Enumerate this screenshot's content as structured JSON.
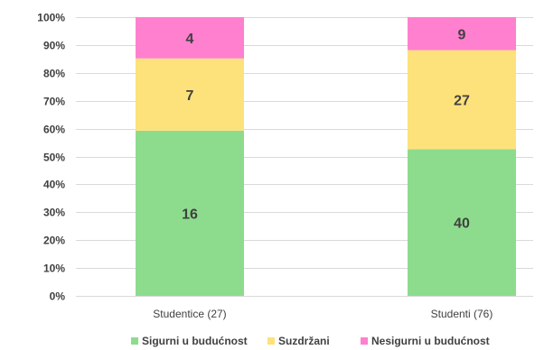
{
  "chart_data": {
    "type": "bar",
    "stacked": true,
    "normalized_100_percent": true,
    "categories": [
      "Studentice (27)",
      "Studenti (76)"
    ],
    "series": [
      {
        "name": "Sigurni u budućnost",
        "values": [
          16,
          40
        ],
        "color": "#8ddc8d"
      },
      {
        "name": "Suzdržani",
        "values": [
          7,
          27
        ],
        "color": "#fde27b"
      },
      {
        "name": "Nesigurni u budućnost",
        "values": [
          4,
          9
        ],
        "color": "#ff80cf"
      }
    ],
    "y_ticks": [
      "0%",
      "10%",
      "20%",
      "30%",
      "40%",
      "50%",
      "60%",
      "70%",
      "80%",
      "90%",
      "100%"
    ],
    "ylim": [
      0,
      100
    ],
    "grid": true,
    "gridline_color": "#d9d9d9",
    "legend_position": "bottom"
  }
}
